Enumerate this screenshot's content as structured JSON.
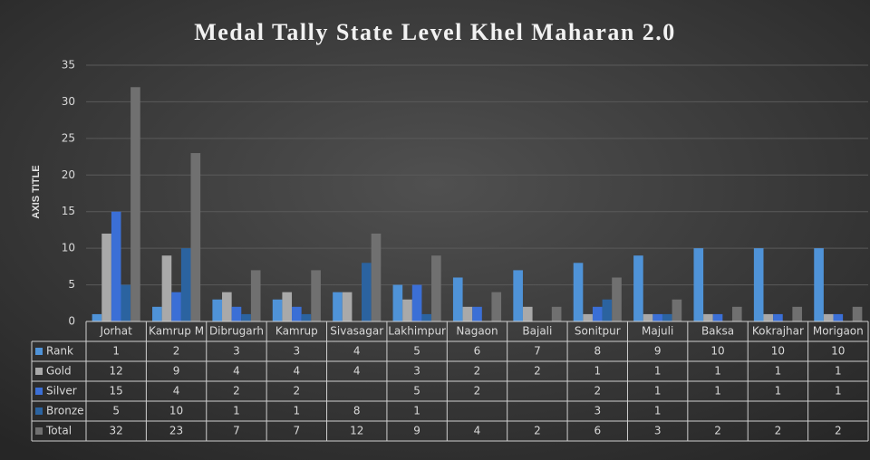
{
  "chart_data": {
    "type": "bar",
    "title": "Medal Tally State Level Khel Maharan 2.0",
    "y_axis_label": "AXIS TITLE",
    "categories": [
      "Jorhat",
      "Kamrup M",
      "Dibrugarh",
      "Kamrup",
      "Sivasagar",
      "Lakhimpur",
      "Nagaon",
      "Bajali",
      "Sonitpur",
      "Majuli",
      "Baksa",
      "Kokrajhar",
      "Morigaon"
    ],
    "series": [
      {
        "name": "Rank",
        "color": "#4f93d8",
        "values": [
          1,
          2,
          3,
          3,
          4,
          5,
          6,
          7,
          8,
          9,
          10,
          10,
          10
        ]
      },
      {
        "name": "Gold",
        "color": "#a9a9a9",
        "values": [
          12,
          9,
          4,
          4,
          4,
          3,
          2,
          2,
          1,
          1,
          1,
          1,
          1
        ]
      },
      {
        "name": "Silver",
        "color": "#3b6fd6",
        "values": [
          15,
          4,
          2,
          2,
          null,
          5,
          2,
          null,
          2,
          1,
          1,
          1,
          1
        ]
      },
      {
        "name": "Bronze",
        "color": "#2b63a0",
        "values": [
          5,
          10,
          1,
          1,
          8,
          1,
          null,
          null,
          3,
          1,
          null,
          null,
          null
        ]
      },
      {
        "name": "Total",
        "color": "#707070",
        "values": [
          32,
          23,
          7,
          7,
          12,
          9,
          4,
          2,
          6,
          3,
          2,
          2,
          2
        ]
      }
    ],
    "ylim": [
      0,
      35
    ],
    "yticks": [
      0,
      5,
      10,
      15,
      20,
      25,
      30,
      35
    ],
    "grid": true,
    "data_table": true
  }
}
